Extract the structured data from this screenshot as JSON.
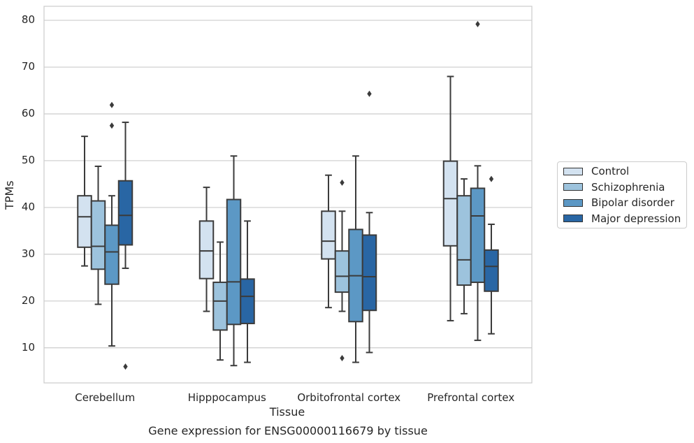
{
  "chart_data": {
    "type": "boxplot",
    "caption": "Gene expression for ENSG00000116679 by tissue",
    "xlabel": "Tissue",
    "ylabel": "TPMs",
    "ylim": [
      2.5,
      83
    ],
    "yticks": [
      10,
      20,
      30,
      40,
      50,
      60,
      70,
      80
    ],
    "grid": true,
    "legend_position": "right",
    "categories": [
      "Cerebellum",
      "Hipppocampus",
      "Orbitofrontal cortex",
      "Prefrontal cortex"
    ],
    "series": [
      {
        "name": "Control",
        "color": "#d3e2f0",
        "boxes": [
          {
            "whislo": 27.5,
            "q1": 31.5,
            "med": 38.0,
            "q3": 42.5,
            "whishi": 55.2,
            "fliers": []
          },
          {
            "whislo": 17.8,
            "q1": 24.8,
            "med": 30.7,
            "q3": 37.1,
            "whishi": 44.3,
            "fliers": []
          },
          {
            "whislo": 18.6,
            "q1": 29.0,
            "med": 32.8,
            "q3": 39.2,
            "whishi": 46.9,
            "fliers": []
          },
          {
            "whislo": 15.8,
            "q1": 31.8,
            "med": 41.9,
            "q3": 49.9,
            "whishi": 68.0,
            "fliers": []
          }
        ]
      },
      {
        "name": "Schizophrenia",
        "color": "#9dc3dd",
        "boxes": [
          {
            "whislo": 19.3,
            "q1": 26.8,
            "med": 31.7,
            "q3": 41.4,
            "whishi": 48.8,
            "fliers": []
          },
          {
            "whislo": 7.4,
            "q1": 13.8,
            "med": 20.0,
            "q3": 24.0,
            "whishi": 32.6,
            "fliers": []
          },
          {
            "whislo": 17.8,
            "q1": 21.9,
            "med": 25.3,
            "q3": 30.7,
            "whishi": 39.2,
            "fliers": [
              45.3,
              7.8
            ]
          },
          {
            "whislo": 17.3,
            "q1": 23.4,
            "med": 28.8,
            "q3": 42.5,
            "whishi": 46.1,
            "fliers": []
          }
        ]
      },
      {
        "name": "Bipolar disorder",
        "color": "#5c98c5",
        "boxes": [
          {
            "whislo": 10.4,
            "q1": 23.6,
            "med": 30.5,
            "q3": 36.2,
            "whishi": 42.5,
            "fliers": [
              61.9,
              57.5
            ]
          },
          {
            "whislo": 6.2,
            "q1": 15.0,
            "med": 24.1,
            "q3": 41.7,
            "whishi": 51.0,
            "fliers": []
          },
          {
            "whislo": 6.9,
            "q1": 15.6,
            "med": 25.4,
            "q3": 35.3,
            "whishi": 51.0,
            "fliers": []
          },
          {
            "whislo": 11.6,
            "q1": 24.0,
            "med": 38.2,
            "q3": 44.1,
            "whishi": 48.9,
            "fliers": [
              79.2
            ]
          }
        ]
      },
      {
        "name": "Major depression",
        "color": "#2966a4",
        "boxes": [
          {
            "whislo": 27.0,
            "q1": 32.0,
            "med": 38.3,
            "q3": 45.7,
            "whishi": 58.2,
            "fliers": [
              6.0
            ]
          },
          {
            "whislo": 6.9,
            "q1": 15.2,
            "med": 21.0,
            "q3": 24.7,
            "whishi": 37.1,
            "fliers": []
          },
          {
            "whislo": 9.0,
            "q1": 18.0,
            "med": 25.2,
            "q3": 34.1,
            "whishi": 38.9,
            "fliers": [
              64.3
            ]
          },
          {
            "whislo": 13.0,
            "q1": 22.1,
            "med": 27.4,
            "q3": 30.9,
            "whishi": 36.4,
            "fliers": [
              46.1
            ]
          }
        ]
      }
    ]
  }
}
